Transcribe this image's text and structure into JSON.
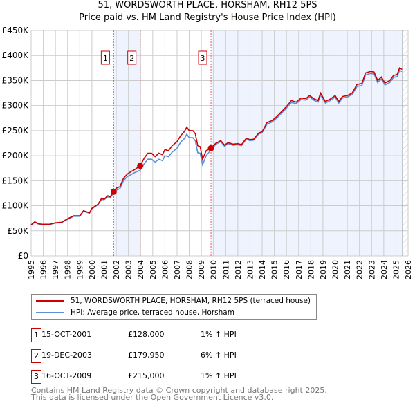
{
  "title": "51, WORDSWORTH PLACE, HORSHAM, RH12 5PS",
  "subtitle": "Price paid vs. HM Land Registry's House Price Index (HPI)",
  "colors": {
    "property": "#cc0000",
    "hpi": "#5b8fd6",
    "shade": "#eef3fd"
  },
  "chart_data": {
    "type": "line",
    "title": "51, WORDSWORTH PLACE, HORSHAM, RH12 5PS",
    "ylim": [
      0,
      450000
    ],
    "xlim": [
      1995,
      2026
    ],
    "y_ticks": [
      0,
      50000,
      100000,
      150000,
      200000,
      250000,
      300000,
      350000,
      400000,
      450000
    ],
    "y_tick_labels": [
      "£0",
      "£50K",
      "£100K",
      "£150K",
      "£200K",
      "£250K",
      "£300K",
      "£350K",
      "£400K",
      "£450K"
    ],
    "x_ticks": [
      1995,
      1996,
      1997,
      1998,
      1999,
      2000,
      2001,
      2002,
      2003,
      2004,
      2005,
      2006,
      2007,
      2008,
      2009,
      2010,
      2011,
      2012,
      2013,
      2014,
      2015,
      2016,
      2017,
      2018,
      2019,
      2020,
      2021,
      2022,
      2023,
      2024,
      2025,
      2026
    ],
    "x": [
      1995.0,
      1995.3,
      1995.6,
      1996,
      1996.5,
      1997,
      1997.5,
      1998,
      1998.5,
      1999,
      1999.3,
      1999.8,
      2000,
      2000.5,
      2000.8,
      2001,
      2001.3,
      2001.5,
      2001.79,
      2002,
      2002.3,
      2002.6,
      2002.9,
      2003.2,
      2003.5,
      2003.97,
      2004.3,
      2004.6,
      2004.9,
      2005.2,
      2005.5,
      2005.8,
      2006,
      2006.3,
      2006.6,
      2007,
      2007.3,
      2007.6,
      2007.8,
      2008,
      2008.3,
      2008.5,
      2008.7,
      2008.9,
      2009.1,
      2009.4,
      2009.8,
      2010.2,
      2010.6,
      2010.9,
      2011.2,
      2011.6,
      2012,
      2012.3,
      2012.7,
      2013,
      2013.3,
      2013.7,
      2014,
      2014.4,
      2014.8,
      2015.2,
      2015.6,
      2016,
      2016.4,
      2016.8,
      2017.2,
      2017.6,
      2017.9,
      2018.3,
      2018.6,
      2018.8,
      2019.2,
      2019.6,
      2020,
      2020.3,
      2020.6,
      2021,
      2021.4,
      2021.8,
      2022.2,
      2022.5,
      2022.9,
      2023.2,
      2023.5,
      2023.8,
      2024.1,
      2024.5,
      2024.8,
      2025.1,
      2025.3,
      2025.5
    ],
    "series": [
      {
        "name": "51, WORDSWORTH PLACE, HORSHAM, RH12 5PS (terraced house)",
        "values": [
          62000,
          68000,
          64000,
          63000,
          63000,
          66000,
          67000,
          74000,
          80000,
          80000,
          90000,
          86000,
          95000,
          103000,
          115000,
          113000,
          120000,
          118000,
          128000,
          135000,
          138000,
          155000,
          163000,
          168000,
          172000,
          180000,
          195000,
          205000,
          205000,
          198000,
          205000,
          202000,
          212000,
          210000,
          220000,
          228000,
          240000,
          248000,
          257000,
          250000,
          250000,
          244000,
          220000,
          218000,
          193000,
          210000,
          215000,
          225000,
          230000,
          221000,
          226000,
          223000,
          224000,
          222000,
          235000,
          232000,
          233000,
          245000,
          248000,
          266000,
          270000,
          278000,
          288000,
          298000,
          310000,
          307000,
          315000,
          314000,
          320000,
          313000,
          310000,
          325000,
          308000,
          313000,
          320000,
          308000,
          318000,
          320000,
          325000,
          342000,
          344000,
          365000,
          368000,
          367000,
          350000,
          357000,
          345000,
          350000,
          360000,
          362000,
          375000,
          372000
        ]
      },
      {
        "name": "HPI: Average price, terraced house, Horsham",
        "values": [
          61500,
          67000,
          63500,
          62500,
          62500,
          65500,
          66500,
          73000,
          79000,
          79000,
          89000,
          85000,
          94000,
          102000,
          113000,
          112000,
          118000,
          116000,
          126000,
          131000,
          134000,
          150000,
          158000,
          162000,
          166000,
          171000,
          184000,
          193000,
          193000,
          187000,
          193000,
          190000,
          200000,
          198000,
          207000,
          215000,
          227000,
          234000,
          243000,
          236000,
          236000,
          230000,
          206000,
          205000,
          182000,
          200000,
          212000,
          223000,
          228000,
          219000,
          224000,
          221000,
          222000,
          220000,
          233000,
          230000,
          231000,
          243000,
          246000,
          263000,
          267000,
          275000,
          285000,
          295000,
          306000,
          304000,
          312000,
          311000,
          317000,
          310000,
          307000,
          321000,
          305000,
          310000,
          317000,
          305000,
          315000,
          317000,
          322000,
          338000,
          340000,
          361000,
          364000,
          363000,
          346000,
          353000,
          341000,
          346000,
          356000,
          358000,
          370000,
          368000
        ]
      }
    ],
    "sales": [
      {
        "label": "1",
        "x": 2001.79,
        "price": 128000
      },
      {
        "label": "2",
        "x": 2003.97,
        "price": 179950
      },
      {
        "label": "3",
        "x": 2009.79,
        "price": 215000
      }
    ],
    "legend_position": "below"
  },
  "legend": [
    "51, WORDSWORTH PLACE, HORSHAM, RH12 5PS (terraced house)",
    "HPI: Average price, terraced house, Horsham"
  ],
  "table": [
    {
      "num": "1",
      "date": "15-OCT-2001",
      "price": "£128,000",
      "hpi": "1% ↑ HPI"
    },
    {
      "num": "2",
      "date": "19-DEC-2003",
      "price": "£179,950",
      "hpi": "6% ↑ HPI"
    },
    {
      "num": "3",
      "date": "16-OCT-2009",
      "price": "£215,000",
      "hpi": "1% ↑ HPI"
    }
  ],
  "footer": [
    "Contains HM Land Registry data © Crown copyright and database right 2025.",
    "This data is licensed under the Open Government Licence v3.0."
  ]
}
